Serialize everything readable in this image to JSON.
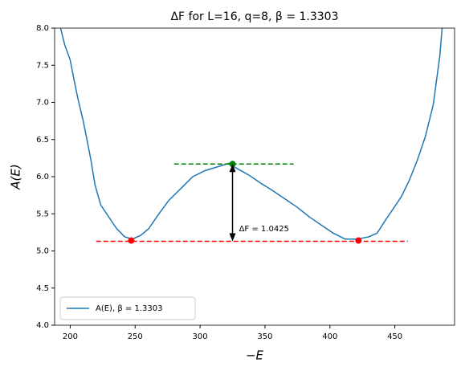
{
  "chart_data": {
    "type": "line",
    "title": "ΔF for L=16, q=8, β = 1.3303",
    "xlabel": "−E",
    "ylabel": "A(E)",
    "xlim": [
      188,
      496
    ],
    "ylim": [
      4,
      8
    ],
    "xticks": [
      200,
      250,
      300,
      350,
      400,
      450
    ],
    "yticks": [
      {
        "value": 4,
        "label": "4.0"
      },
      4.5,
      {
        "value": 5,
        "label": "5.0"
      },
      5.5,
      {
        "value": 6,
        "label": "6.0"
      },
      6.5,
      {
        "value": 7,
        "label": "7.0"
      },
      7.5,
      {
        "value": 8,
        "label": "8.0"
      }
    ],
    "legend": "lower left",
    "series": [
      {
        "name": "A(E), β = 1.3303",
        "color": "#1f77b4",
        "x": [
          192.6,
          195.7,
          200,
          203,
          206.2,
          209.9,
          213,
          216,
          219.1,
          223.5,
          229.6,
          235.8,
          242,
          248,
          254.3,
          260.5,
          266.7,
          275.9,
          285.2,
          294.4,
          303.7,
          313,
          322.2,
          328.4,
          337.7,
          346.9,
          356.2,
          365.4,
          374.7,
          384,
          393.2,
          402.5,
          411.7,
          421,
          430,
          436.4,
          442.6,
          448.8,
          455,
          461.1,
          467.3,
          473.5,
          479.6,
          484.6,
          486.4
        ],
        "values": [
          8.0,
          7.78,
          7.57,
          7.3,
          7.03,
          6.76,
          6.49,
          6.22,
          5.89,
          5.62,
          5.46,
          5.3,
          5.19,
          5.16,
          5.21,
          5.3,
          5.46,
          5.68,
          5.84,
          6.0,
          6.08,
          6.13,
          6.18,
          6.11,
          6.02,
          5.91,
          5.81,
          5.7,
          5.59,
          5.46,
          5.35,
          5.24,
          5.16,
          5.16,
          5.19,
          5.24,
          5.41,
          5.57,
          5.73,
          5.95,
          6.22,
          6.54,
          6.97,
          7.62,
          8.0
        ]
      }
    ],
    "reference_lines": [
      {
        "y": 5.13,
        "x": [
          220,
          460
        ],
        "color": "#ff0000"
      },
      {
        "y": 6.17,
        "x": [
          280,
          372
        ],
        "color": "#008000"
      }
    ],
    "markers": [
      {
        "x": 247,
        "y": 5.14,
        "color": "#ff0000"
      },
      {
        "x": 422,
        "y": 5.14,
        "color": "#ff0000"
      },
      {
        "x": 325,
        "y": 6.17,
        "color": "#008000"
      }
    ],
    "arrow": {
      "x": 325,
      "y": [
        5.13,
        6.17
      ]
    },
    "annotation": {
      "text": "ΔF = 1.0425",
      "x": 330,
      "y": 5.3
    }
  }
}
